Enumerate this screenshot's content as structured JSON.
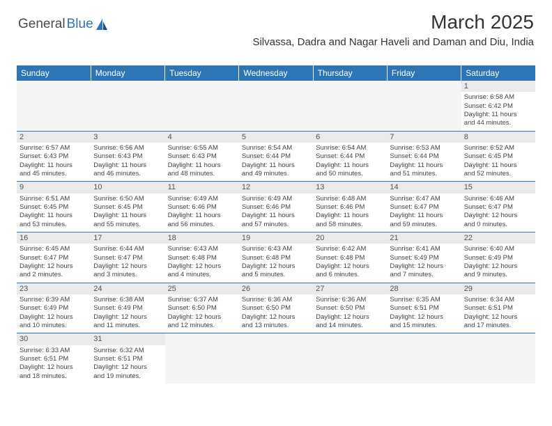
{
  "logo": {
    "part1": "General",
    "part2": "Blue"
  },
  "header": {
    "title": "March 2025",
    "location": "Silvassa, Dadra and Nagar Haveli and Daman and Diu, India"
  },
  "colors": {
    "brand_blue": "#2e75b6",
    "text": "#333333",
    "daynum_bg": "#eaeaea",
    "empty_bg": "#f5f5f5"
  },
  "weekdays": [
    "Sunday",
    "Monday",
    "Tuesday",
    "Wednesday",
    "Thursday",
    "Friday",
    "Saturday"
  ],
  "weeks": [
    [
      null,
      null,
      null,
      null,
      null,
      null,
      {
        "n": "1",
        "sr": "Sunrise: 6:58 AM",
        "ss": "Sunset: 6:42 PM",
        "d1": "Daylight: 11 hours",
        "d2": "and 44 minutes."
      }
    ],
    [
      {
        "n": "2",
        "sr": "Sunrise: 6:57 AM",
        "ss": "Sunset: 6:43 PM",
        "d1": "Daylight: 11 hours",
        "d2": "and 45 minutes."
      },
      {
        "n": "3",
        "sr": "Sunrise: 6:56 AM",
        "ss": "Sunset: 6:43 PM",
        "d1": "Daylight: 11 hours",
        "d2": "and 46 minutes."
      },
      {
        "n": "4",
        "sr": "Sunrise: 6:55 AM",
        "ss": "Sunset: 6:43 PM",
        "d1": "Daylight: 11 hours",
        "d2": "and 48 minutes."
      },
      {
        "n": "5",
        "sr": "Sunrise: 6:54 AM",
        "ss": "Sunset: 6:44 PM",
        "d1": "Daylight: 11 hours",
        "d2": "and 49 minutes."
      },
      {
        "n": "6",
        "sr": "Sunrise: 6:54 AM",
        "ss": "Sunset: 6:44 PM",
        "d1": "Daylight: 11 hours",
        "d2": "and 50 minutes."
      },
      {
        "n": "7",
        "sr": "Sunrise: 6:53 AM",
        "ss": "Sunset: 6:44 PM",
        "d1": "Daylight: 11 hours",
        "d2": "and 51 minutes."
      },
      {
        "n": "8",
        "sr": "Sunrise: 6:52 AM",
        "ss": "Sunset: 6:45 PM",
        "d1": "Daylight: 11 hours",
        "d2": "and 52 minutes."
      }
    ],
    [
      {
        "n": "9",
        "sr": "Sunrise: 6:51 AM",
        "ss": "Sunset: 6:45 PM",
        "d1": "Daylight: 11 hours",
        "d2": "and 53 minutes."
      },
      {
        "n": "10",
        "sr": "Sunrise: 6:50 AM",
        "ss": "Sunset: 6:45 PM",
        "d1": "Daylight: 11 hours",
        "d2": "and 55 minutes."
      },
      {
        "n": "11",
        "sr": "Sunrise: 6:49 AM",
        "ss": "Sunset: 6:46 PM",
        "d1": "Daylight: 11 hours",
        "d2": "and 56 minutes."
      },
      {
        "n": "12",
        "sr": "Sunrise: 6:49 AM",
        "ss": "Sunset: 6:46 PM",
        "d1": "Daylight: 11 hours",
        "d2": "and 57 minutes."
      },
      {
        "n": "13",
        "sr": "Sunrise: 6:48 AM",
        "ss": "Sunset: 6:46 PM",
        "d1": "Daylight: 11 hours",
        "d2": "and 58 minutes."
      },
      {
        "n": "14",
        "sr": "Sunrise: 6:47 AM",
        "ss": "Sunset: 6:47 PM",
        "d1": "Daylight: 11 hours",
        "d2": "and 59 minutes."
      },
      {
        "n": "15",
        "sr": "Sunrise: 6:46 AM",
        "ss": "Sunset: 6:47 PM",
        "d1": "Daylight: 12 hours",
        "d2": "and 0 minutes."
      }
    ],
    [
      {
        "n": "16",
        "sr": "Sunrise: 6:45 AM",
        "ss": "Sunset: 6:47 PM",
        "d1": "Daylight: 12 hours",
        "d2": "and 2 minutes."
      },
      {
        "n": "17",
        "sr": "Sunrise: 6:44 AM",
        "ss": "Sunset: 6:47 PM",
        "d1": "Daylight: 12 hours",
        "d2": "and 3 minutes."
      },
      {
        "n": "18",
        "sr": "Sunrise: 6:43 AM",
        "ss": "Sunset: 6:48 PM",
        "d1": "Daylight: 12 hours",
        "d2": "and 4 minutes."
      },
      {
        "n": "19",
        "sr": "Sunrise: 6:43 AM",
        "ss": "Sunset: 6:48 PM",
        "d1": "Daylight: 12 hours",
        "d2": "and 5 minutes."
      },
      {
        "n": "20",
        "sr": "Sunrise: 6:42 AM",
        "ss": "Sunset: 6:48 PM",
        "d1": "Daylight: 12 hours",
        "d2": "and 6 minutes."
      },
      {
        "n": "21",
        "sr": "Sunrise: 6:41 AM",
        "ss": "Sunset: 6:49 PM",
        "d1": "Daylight: 12 hours",
        "d2": "and 7 minutes."
      },
      {
        "n": "22",
        "sr": "Sunrise: 6:40 AM",
        "ss": "Sunset: 6:49 PM",
        "d1": "Daylight: 12 hours",
        "d2": "and 9 minutes."
      }
    ],
    [
      {
        "n": "23",
        "sr": "Sunrise: 6:39 AM",
        "ss": "Sunset: 6:49 PM",
        "d1": "Daylight: 12 hours",
        "d2": "and 10 minutes."
      },
      {
        "n": "24",
        "sr": "Sunrise: 6:38 AM",
        "ss": "Sunset: 6:49 PM",
        "d1": "Daylight: 12 hours",
        "d2": "and 11 minutes."
      },
      {
        "n": "25",
        "sr": "Sunrise: 6:37 AM",
        "ss": "Sunset: 6:50 PM",
        "d1": "Daylight: 12 hours",
        "d2": "and 12 minutes."
      },
      {
        "n": "26",
        "sr": "Sunrise: 6:36 AM",
        "ss": "Sunset: 6:50 PM",
        "d1": "Daylight: 12 hours",
        "d2": "and 13 minutes."
      },
      {
        "n": "27",
        "sr": "Sunrise: 6:36 AM",
        "ss": "Sunset: 6:50 PM",
        "d1": "Daylight: 12 hours",
        "d2": "and 14 minutes."
      },
      {
        "n": "28",
        "sr": "Sunrise: 6:35 AM",
        "ss": "Sunset: 6:51 PM",
        "d1": "Daylight: 12 hours",
        "d2": "and 15 minutes."
      },
      {
        "n": "29",
        "sr": "Sunrise: 6:34 AM",
        "ss": "Sunset: 6:51 PM",
        "d1": "Daylight: 12 hours",
        "d2": "and 17 minutes."
      }
    ],
    [
      {
        "n": "30",
        "sr": "Sunrise: 6:33 AM",
        "ss": "Sunset: 6:51 PM",
        "d1": "Daylight: 12 hours",
        "d2": "and 18 minutes."
      },
      {
        "n": "31",
        "sr": "Sunrise: 6:32 AM",
        "ss": "Sunset: 6:51 PM",
        "d1": "Daylight: 12 hours",
        "d2": "and 19 minutes."
      },
      null,
      null,
      null,
      null,
      null
    ]
  ]
}
